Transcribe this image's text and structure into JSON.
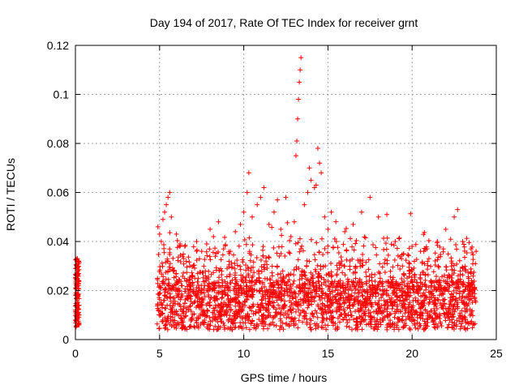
{
  "chart_data": {
    "type": "scatter",
    "title": "Day 194 of 2017, Rate Of TEC Index for receiver grnt",
    "xlabel": "GPS time / hours",
    "ylabel": "ROTI / TECUs",
    "xlim": [
      0,
      25
    ],
    "ylim": [
      0,
      0.12
    ],
    "x_ticks": [
      0,
      5,
      10,
      15,
      20,
      25
    ],
    "x_tick_labels": [
      "0",
      "5",
      "10",
      "15",
      "20",
      "25"
    ],
    "y_ticks": [
      0,
      0.02,
      0.04,
      0.06,
      0.08,
      0.1,
      0.12
    ],
    "y_tick_labels": [
      "0",
      "0.02",
      "0.04",
      "0.06",
      "0.08",
      "0.1",
      "0.12"
    ],
    "grid": true,
    "marker": "+",
    "marker_color": "#ff0000",
    "series": [
      {
        "name": "ROTI",
        "points": [
          [
            0.0,
            0.012
          ],
          [
            0.05,
            0.008
          ],
          [
            0.1,
            0.015
          ],
          [
            0.15,
            0.02
          ],
          [
            0.2,
            0.01
          ],
          [
            0.02,
            0.025
          ],
          [
            0.08,
            0.03
          ],
          [
            0.12,
            0.033
          ],
          [
            0.18,
            0.022
          ],
          [
            0.06,
            0.018
          ],
          [
            0.14,
            0.028
          ],
          [
            0.16,
            0.006
          ],
          [
            0.04,
            0.014
          ],
          [
            0.1,
            0.032
          ],
          [
            0.2,
            0.024
          ],
          [
            4.9,
            0.046
          ],
          [
            5.0,
            0.043
          ],
          [
            5.1,
            0.04
          ],
          [
            5.3,
            0.052
          ],
          [
            5.5,
            0.058
          ],
          [
            5.6,
            0.06
          ],
          [
            5.2,
            0.049
          ],
          [
            5.4,
            0.055
          ],
          [
            5.7,
            0.05
          ],
          [
            6.0,
            0.043
          ],
          [
            6.2,
            0.038
          ],
          [
            6.5,
            0.038
          ],
          [
            6.8,
            0.03
          ],
          [
            7.2,
            0.04
          ],
          [
            7.5,
            0.036
          ],
          [
            7.8,
            0.039
          ],
          [
            8.0,
            0.045
          ],
          [
            8.2,
            0.042
          ],
          [
            8.5,
            0.048
          ],
          [
            8.8,
            0.037
          ],
          [
            9.2,
            0.036
          ],
          [
            9.5,
            0.044
          ],
          [
            9.8,
            0.047
          ],
          [
            10.0,
            0.052
          ],
          [
            10.2,
            0.06
          ],
          [
            10.3,
            0.068
          ],
          [
            10.5,
            0.05
          ],
          [
            10.8,
            0.055
          ],
          [
            11.0,
            0.058
          ],
          [
            11.2,
            0.062
          ],
          [
            11.5,
            0.047
          ],
          [
            11.8,
            0.052
          ],
          [
            12.0,
            0.057
          ],
          [
            12.2,
            0.045
          ],
          [
            12.5,
            0.058
          ],
          [
            12.8,
            0.042
          ],
          [
            13.0,
            0.048
          ],
          [
            13.1,
            0.075
          ],
          [
            13.15,
            0.081
          ],
          [
            13.2,
            0.09
          ],
          [
            13.25,
            0.098
          ],
          [
            13.3,
            0.105
          ],
          [
            13.35,
            0.11
          ],
          [
            13.4,
            0.115
          ],
          [
            13.6,
            0.055
          ],
          [
            13.8,
            0.06
          ],
          [
            14.0,
            0.065
          ],
          [
            14.2,
            0.062
          ],
          [
            14.4,
            0.078
          ],
          [
            14.5,
            0.072
          ],
          [
            14.6,
            0.068
          ],
          [
            14.8,
            0.05
          ],
          [
            15.0,
            0.045
          ],
          [
            15.2,
            0.052
          ],
          [
            15.5,
            0.04
          ],
          [
            16.0,
            0.044
          ],
          [
            16.5,
            0.047
          ],
          [
            17.0,
            0.052
          ],
          [
            17.5,
            0.058
          ],
          [
            18.0,
            0.05
          ],
          [
            18.5,
            0.051
          ],
          [
            19.0,
            0.04
          ],
          [
            19.5,
            0.035
          ],
          [
            20.0,
            0.038
          ],
          [
            20.5,
            0.036
          ],
          [
            21.0,
            0.033
          ],
          [
            21.5,
            0.04
          ],
          [
            22.0,
            0.045
          ],
          [
            22.5,
            0.05
          ],
          [
            22.7,
            0.053
          ],
          [
            23.0,
            0.04
          ],
          [
            23.5,
            0.037
          ],
          [
            23.8,
            0.036
          ],
          [
            13.9,
            0.07
          ],
          [
            14.3,
            0.063
          ]
        ]
      }
    ],
    "density_note_excluded": true
  }
}
